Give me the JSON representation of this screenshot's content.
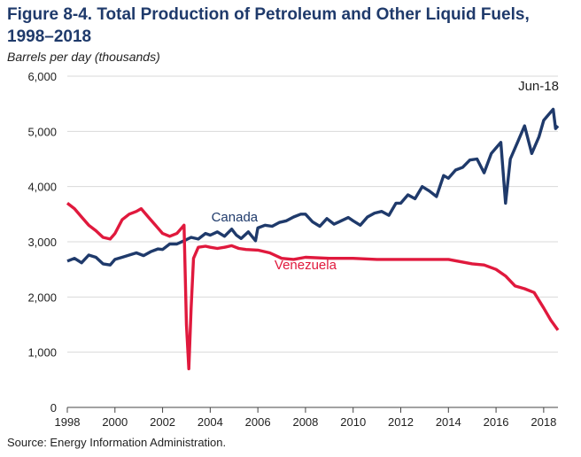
{
  "title": "Figure 8-4. Total Production of Petroleum and Other Liquid Fuels, 1998–2018",
  "subtitle": "Barrels per day (thousands)",
  "source": "Source: Energy Information Administration.",
  "chart_data": {
    "type": "line",
    "title": "Figure 8-4. Total Production of Petroleum and Other Liquid Fuels, 1998–2018",
    "ylabel": "Barrels per day (thousands)",
    "xlim": [
      1998,
      2018.6
    ],
    "ylim": [
      0,
      6000
    ],
    "x_ticks": [
      "1998",
      "2000",
      "2002",
      "2004",
      "2006",
      "2008",
      "2010",
      "2012",
      "2014",
      "2016",
      "2018"
    ],
    "y_ticks": [
      "0",
      "1,000",
      "2,000",
      "3,000",
      "4,000",
      "5,000",
      "6,000"
    ],
    "grid": "horizontal",
    "annotations": [
      {
        "text": "Jun-18"
      }
    ],
    "series": [
      {
        "name": "Canada",
        "color": "#1f3a6b",
        "points": [
          [
            1998.0,
            2650
          ],
          [
            1998.3,
            2700
          ],
          [
            1998.6,
            2620
          ],
          [
            1998.9,
            2760
          ],
          [
            1999.2,
            2720
          ],
          [
            1999.5,
            2600
          ],
          [
            1999.8,
            2580
          ],
          [
            2000.0,
            2680
          ],
          [
            2000.3,
            2720
          ],
          [
            2000.6,
            2760
          ],
          [
            2000.9,
            2800
          ],
          [
            2001.2,
            2750
          ],
          [
            2001.5,
            2820
          ],
          [
            2001.8,
            2870
          ],
          [
            2002.0,
            2860
          ],
          [
            2002.3,
            2960
          ],
          [
            2002.6,
            2960
          ],
          [
            2002.9,
            3020
          ],
          [
            2003.2,
            3080
          ],
          [
            2003.5,
            3050
          ],
          [
            2003.8,
            3150
          ],
          [
            2004.0,
            3120
          ],
          [
            2004.3,
            3180
          ],
          [
            2004.6,
            3100
          ],
          [
            2004.9,
            3230
          ],
          [
            2005.1,
            3120
          ],
          [
            2005.3,
            3060
          ],
          [
            2005.6,
            3180
          ],
          [
            2005.9,
            3020
          ],
          [
            2006.0,
            3250
          ],
          [
            2006.3,
            3300
          ],
          [
            2006.6,
            3280
          ],
          [
            2006.9,
            3350
          ],
          [
            2007.2,
            3380
          ],
          [
            2007.5,
            3450
          ],
          [
            2007.8,
            3500
          ],
          [
            2008.0,
            3500
          ],
          [
            2008.3,
            3360
          ],
          [
            2008.6,
            3280
          ],
          [
            2008.9,
            3420
          ],
          [
            2009.2,
            3320
          ],
          [
            2009.5,
            3380
          ],
          [
            2009.8,
            3440
          ],
          [
            2010.0,
            3380
          ],
          [
            2010.3,
            3300
          ],
          [
            2010.6,
            3450
          ],
          [
            2010.9,
            3520
          ],
          [
            2011.2,
            3550
          ],
          [
            2011.5,
            3480
          ],
          [
            2011.8,
            3700
          ],
          [
            2012.0,
            3700
          ],
          [
            2012.3,
            3850
          ],
          [
            2012.6,
            3780
          ],
          [
            2012.9,
            4000
          ],
          [
            2013.2,
            3920
          ],
          [
            2013.5,
            3820
          ],
          [
            2013.8,
            4200
          ],
          [
            2014.0,
            4150
          ],
          [
            2014.3,
            4300
          ],
          [
            2014.6,
            4350
          ],
          [
            2014.9,
            4480
          ],
          [
            2015.2,
            4500
          ],
          [
            2015.5,
            4250
          ],
          [
            2015.8,
            4600
          ],
          [
            2016.0,
            4700
          ],
          [
            2016.2,
            4800
          ],
          [
            2016.4,
            3700
          ],
          [
            2016.6,
            4500
          ],
          [
            2016.9,
            4800
          ],
          [
            2017.2,
            5100
          ],
          [
            2017.5,
            4600
          ],
          [
            2017.8,
            4900
          ],
          [
            2018.0,
            5200
          ],
          [
            2018.2,
            5300
          ],
          [
            2018.4,
            5400
          ],
          [
            2018.5,
            5050
          ],
          [
            2018.6,
            5100
          ]
        ]
      },
      {
        "name": "Venezuela",
        "color": "#e0193d",
        "points": [
          [
            1998.0,
            3700
          ],
          [
            1998.3,
            3600
          ],
          [
            1998.6,
            3450
          ],
          [
            1998.9,
            3300
          ],
          [
            1999.2,
            3200
          ],
          [
            1999.5,
            3080
          ],
          [
            1999.8,
            3050
          ],
          [
            2000.0,
            3150
          ],
          [
            2000.3,
            3400
          ],
          [
            2000.6,
            3500
          ],
          [
            2000.9,
            3550
          ],
          [
            2001.1,
            3600
          ],
          [
            2001.4,
            3450
          ],
          [
            2001.7,
            3300
          ],
          [
            2002.0,
            3150
          ],
          [
            2002.3,
            3100
          ],
          [
            2002.6,
            3150
          ],
          [
            2002.9,
            3300
          ],
          [
            2003.0,
            1500
          ],
          [
            2003.1,
            700
          ],
          [
            2003.2,
            1800
          ],
          [
            2003.3,
            2700
          ],
          [
            2003.5,
            2900
          ],
          [
            2003.8,
            2920
          ],
          [
            2004.0,
            2900
          ],
          [
            2004.3,
            2880
          ],
          [
            2004.6,
            2900
          ],
          [
            2004.9,
            2930
          ],
          [
            2005.2,
            2880
          ],
          [
            2005.5,
            2860
          ],
          [
            2006.0,
            2850
          ],
          [
            2006.5,
            2800
          ],
          [
            2007.0,
            2700
          ],
          [
            2007.5,
            2680
          ],
          [
            2008.0,
            2720
          ],
          [
            2009.0,
            2700
          ],
          [
            2010.0,
            2700
          ],
          [
            2011.0,
            2680
          ],
          [
            2012.0,
            2680
          ],
          [
            2013.0,
            2680
          ],
          [
            2014.0,
            2680
          ],
          [
            2015.0,
            2600
          ],
          [
            2015.5,
            2580
          ],
          [
            2016.0,
            2500
          ],
          [
            2016.4,
            2380
          ],
          [
            2016.8,
            2200
          ],
          [
            2017.2,
            2150
          ],
          [
            2017.6,
            2080
          ],
          [
            2018.0,
            1800
          ],
          [
            2018.3,
            1580
          ],
          [
            2018.6,
            1400
          ]
        ]
      }
    ]
  }
}
